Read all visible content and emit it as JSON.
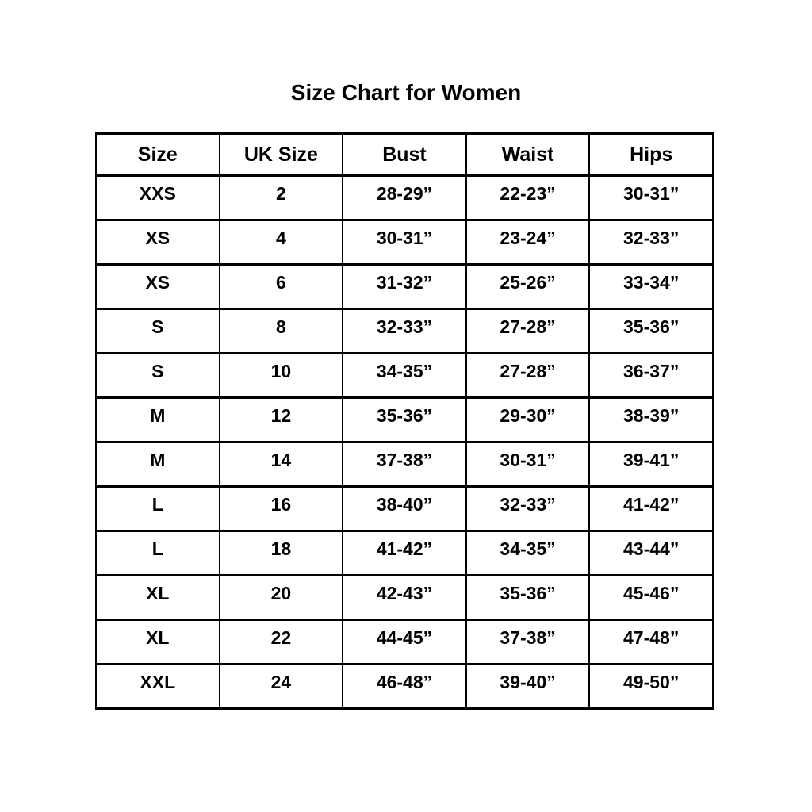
{
  "page": {
    "title": "Size Chart for Women"
  },
  "colors": {
    "text": "#000000",
    "border": "#000000",
    "background": "#ffffff"
  },
  "table": {
    "headers": [
      "Size",
      "UK Size",
      "Bust",
      "Waist",
      "Hips"
    ],
    "column_keys": [
      "size",
      "uk-size",
      "bust",
      "waist",
      "hips"
    ],
    "rows": [
      [
        "XXS",
        "2",
        "28-29”",
        "22-23”",
        "30-31”"
      ],
      [
        "XS",
        "4",
        "30-31”",
        "23-24”",
        "32-33”"
      ],
      [
        "XS",
        "6",
        "31-32”",
        "25-26”",
        "33-34”"
      ],
      [
        "S",
        "8",
        "32-33”",
        "27-28”",
        "35-36”"
      ],
      [
        "S",
        "10",
        "34-35”",
        "27-28”",
        "36-37”"
      ],
      [
        "M",
        "12",
        "35-36”",
        "29-30”",
        "38-39”"
      ],
      [
        "M",
        "14",
        "37-38”",
        "30-31”",
        "39-41”"
      ],
      [
        "L",
        "16",
        "38-40”",
        "32-33”",
        "41-42”"
      ],
      [
        "L",
        "18",
        "41-42”",
        "34-35”",
        "43-44”"
      ],
      [
        "XL",
        "20",
        "42-43”",
        "35-36”",
        "45-46”"
      ],
      [
        "XL",
        "22",
        "44-45”",
        "37-38”",
        "47-48”"
      ],
      [
        "XXL",
        "24",
        "46-48”",
        "39-40”",
        "49-50”"
      ]
    ]
  }
}
